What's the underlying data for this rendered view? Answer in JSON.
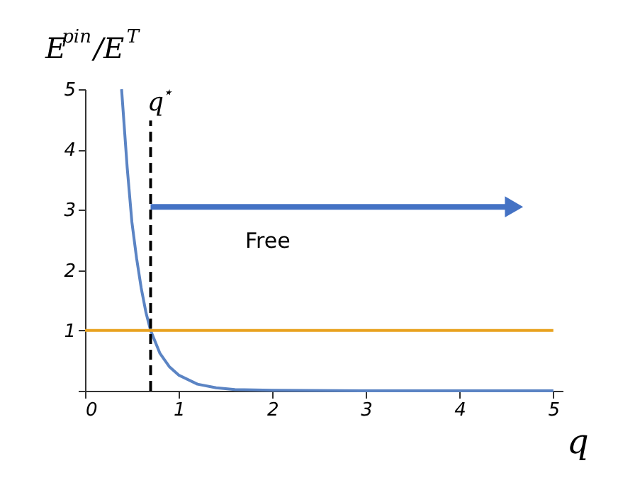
{
  "chart_data": {
    "type": "line",
    "xlabel": "q",
    "ylabel": "E$^{pin}$/E$^{T}$",
    "xlim": [
      0,
      5.1
    ],
    "ylim": [
      0,
      5
    ],
    "xticks": [
      0,
      1,
      2,
      3,
      4,
      5
    ],
    "yticks": [
      {
        "value": 0,
        "label": null
      },
      1,
      2,
      3,
      4,
      5
    ],
    "grid": false,
    "marker": "none",
    "series": [
      {
        "color": "#5b84c4",
        "x": [
          0.39,
          0.45,
          0.5,
          0.55,
          0.6,
          0.65,
          0.7,
          0.8,
          0.9,
          1.0,
          1.2,
          1.4,
          1.6,
          2.0,
          3.0,
          4.0,
          5.0
        ],
        "values": [
          5,
          3.7,
          2.8,
          2.2,
          1.7,
          1.3,
          1.0,
          0.62,
          0.4,
          0.26,
          0.11,
          0.05,
          0.02,
          0.01,
          0,
          0,
          0
        ]
      },
      {
        "color": "#e8a21f",
        "x": [
          0,
          5
        ],
        "values": [
          1,
          1
        ]
      },
      {
        "color": "#000000",
        "x": [
          0.7,
          0.7
        ],
        "values": [
          0,
          4.48
        ],
        "line_style": "dashed"
      },
      {
        "color": "#4472c4",
        "x": [
          0.7,
          4.58
        ],
        "values": [
          3.05,
          3.05
        ],
        "marker": "triangle"
      }
    ],
    "annotations": [
      "q$^{⋆}$",
      "Free"
    ]
  }
}
